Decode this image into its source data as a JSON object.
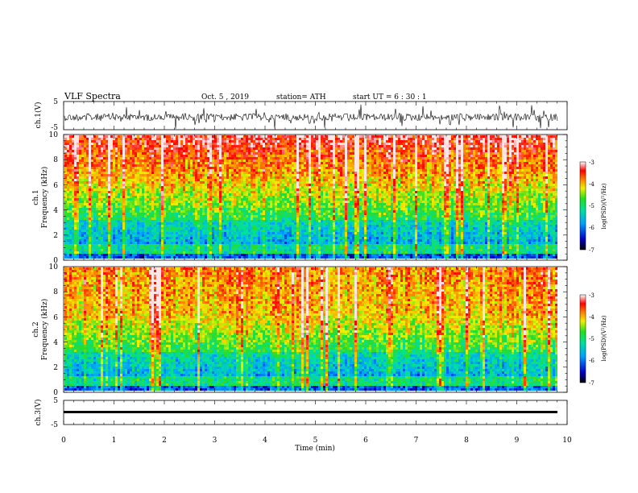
{
  "header": {
    "title": "VLF  Spectra",
    "date": "Oct. 5  , 2019",
    "station": "station= ATH",
    "start": "start  UT  =   6  : 30 : 1"
  },
  "chart_data": [
    {
      "type": "line",
      "name": "ch1-waveform",
      "ylabel": "ch.1(V)",
      "ylim": [
        -5,
        5
      ],
      "yticks": [
        "5",
        "-5"
      ],
      "xlim": [
        0,
        10
      ]
    },
    {
      "type": "heatmap",
      "name": "ch1-spectrogram",
      "ylabel_top": "ch.1",
      "ylabel": "Frequency  (kHz)",
      "ylim": [
        0,
        10
      ],
      "yticks": [
        "0",
        "2",
        "4",
        "6",
        "8",
        "10"
      ],
      "xlim": [
        0,
        10
      ],
      "colorbar": {
        "label": "log(PSD)(V²/Hz)",
        "range": [
          -7,
          -3
        ],
        "ticks": [
          "-3",
          "-4",
          "-5",
          "-6",
          "-7"
        ]
      }
    },
    {
      "type": "heatmap",
      "name": "ch2-spectrogram",
      "ylabel_top": "ch.2",
      "ylabel": "Frequency  (kHz)",
      "ylim": [
        0,
        10
      ],
      "yticks": [
        "0",
        "2",
        "4",
        "6",
        "8",
        "10"
      ],
      "xlim": [
        0,
        10
      ],
      "colorbar": {
        "label": "log(PSD)(V²/Hz)",
        "range": [
          -7,
          -3
        ],
        "ticks": [
          "-3",
          "-4",
          "-5",
          "-6",
          "-7"
        ]
      }
    },
    {
      "type": "line",
      "name": "ch3-waveform",
      "ylabel": "ch.3(V)",
      "ylim": [
        -5,
        5
      ],
      "yticks": [
        "5",
        "-5"
      ],
      "xlabel": "Time  (min)",
      "xlim": [
        0,
        10
      ],
      "xticks": [
        "0",
        "1",
        "2",
        "3",
        "4",
        "5",
        "6",
        "7",
        "8",
        "9",
        "10"
      ]
    }
  ]
}
